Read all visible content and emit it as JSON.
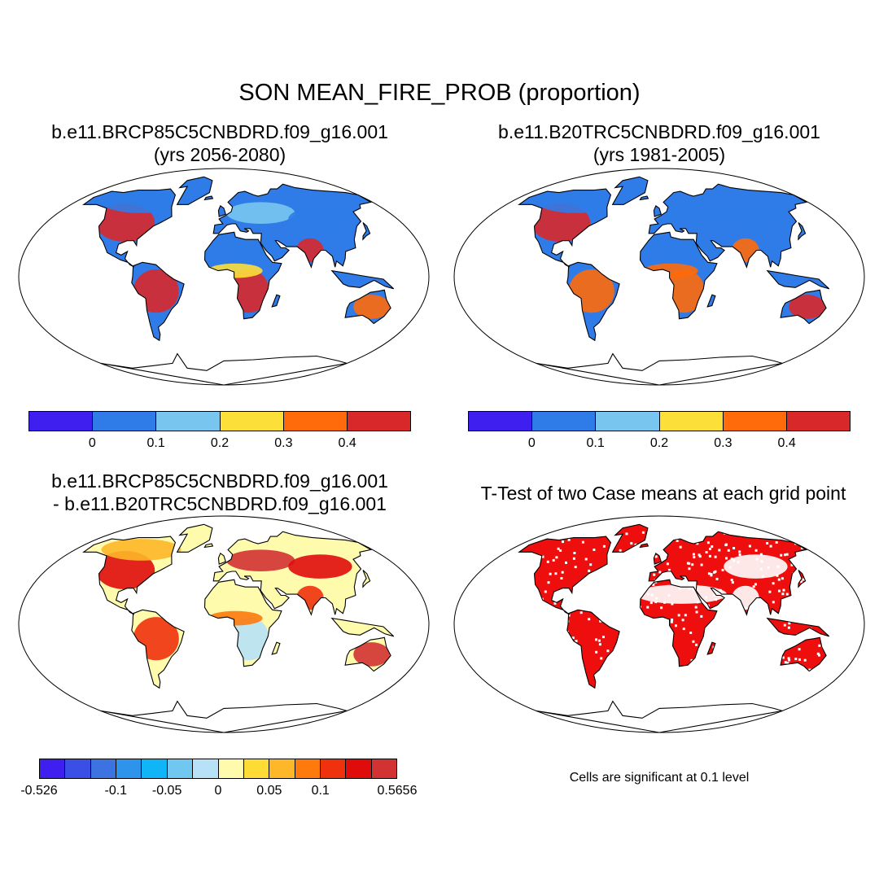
{
  "figure": {
    "title": "SON MEAN_FIRE_PROB (proportion)"
  },
  "colors": {
    "ocean": "#ffffff",
    "coast": "#000000",
    "fire_scale": [
      "#3f1ff0",
      "#2f7ce8",
      "#78c6f0",
      "#fddf3a",
      "#ff6a0a",
      "#d9282a"
    ],
    "diff_scale": [
      "#3f1ff0",
      "#3a4fe6",
      "#3c73e0",
      "#2e93ea",
      "#0fb5f7",
      "#70c8f0",
      "#b7e1f6",
      "#fffbad",
      "#fedc35",
      "#fdb728",
      "#fe7a0d",
      "#f0310e",
      "#e00c0c",
      "#d33232"
    ],
    "significant": "#ee0e0e"
  },
  "panels": [
    {
      "id": "future",
      "title_line1": "b.e11.BRCP85C5CNBDRD.f09_g16.001",
      "title_line2": "(yrs 2056-2080)",
      "map_type": "filled-contour",
      "colorbar": {
        "labels": [
          "0",
          "0.1",
          "0.2",
          "0.3",
          "0.4"
        ]
      }
    },
    {
      "id": "historical",
      "title_line1": "b.e11.B20TRC5CNBDRD.f09_g16.001",
      "title_line2": "(yrs 1981-2005)",
      "map_type": "filled-contour",
      "colorbar": {
        "labels": [
          "0",
          "0.1",
          "0.2",
          "0.3",
          "0.4"
        ]
      }
    },
    {
      "id": "difference",
      "title_line1": "b.e11.BRCP85C5CNBDRD.f09_g16.001",
      "title_line2": "- b.e11.B20TRC5CNBDRD.f09_g16.001",
      "map_type": "difference",
      "colorbar": {
        "labels": [
          "-0.526",
          "-0.1",
          "-0.05",
          "0",
          "0.05",
          "0.1",
          "0.5656"
        ]
      }
    },
    {
      "id": "ttest",
      "title_line1": "T-Test of two Case means at each grid point",
      "title_line2": "",
      "map_type": "significance",
      "note": "Cells are significant at 0.1 level"
    }
  ]
}
